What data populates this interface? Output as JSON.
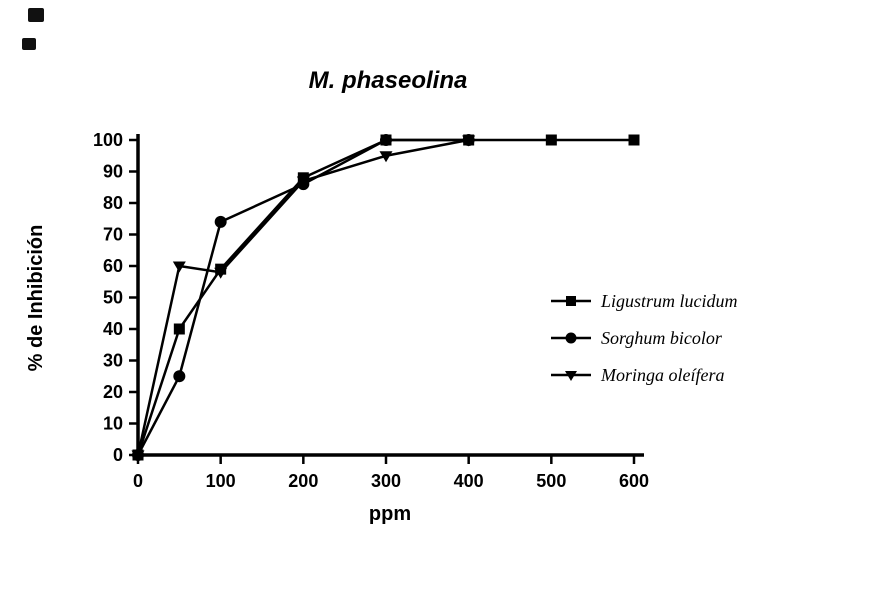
{
  "chart_data": {
    "type": "line",
    "title": "M. phaseolina",
    "xlabel": "ppm",
    "ylabel": "% de Inhibición",
    "xlim": [
      0,
      600
    ],
    "ylim": [
      0,
      100
    ],
    "xticks": [
      0,
      100,
      200,
      300,
      400,
      500,
      600
    ],
    "yticks": [
      0,
      10,
      20,
      30,
      40,
      50,
      60,
      70,
      80,
      90,
      100
    ],
    "grid": false,
    "legend_position": "right",
    "line_color": "#000000",
    "series": [
      {
        "name": "Ligustrum lucidum",
        "marker": "square",
        "x": [
          0,
          50,
          100,
          200,
          300,
          400,
          500,
          600
        ],
        "y": [
          0,
          40,
          59,
          88,
          100,
          100,
          100,
          100
        ]
      },
      {
        "name": "Sorghum bicolor",
        "marker": "circle",
        "x": [
          0,
          50,
          100,
          200,
          300,
          400
        ],
        "y": [
          0,
          25,
          74,
          86,
          100,
          100
        ]
      },
      {
        "name": "Moringa oleífera",
        "marker": "triangle-down",
        "x": [
          0,
          50,
          100,
          200,
          300,
          400
        ],
        "y": [
          0,
          60,
          58,
          87,
          95,
          100
        ]
      }
    ]
  }
}
